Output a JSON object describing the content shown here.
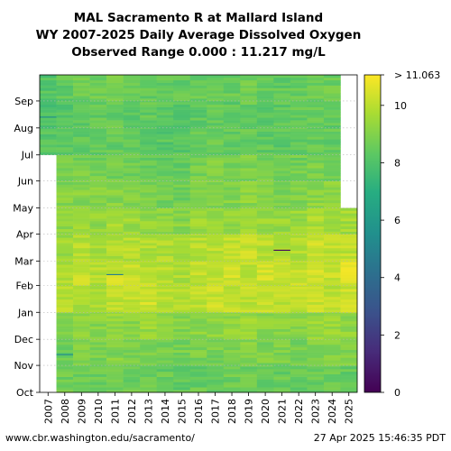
{
  "chart_data": {
    "type": "heatmap",
    "title_lines": [
      "MAL Sacramento R at Mallard Island",
      "WY 2007-2025 Daily Average Dissolved Oxygen",
      "Observed Range 0.000 : 11.217 mg/L"
    ],
    "xlabel": "",
    "ylabel": "",
    "x_categories": [
      "2007",
      "2008",
      "2009",
      "2010",
      "2011",
      "2012",
      "2013",
      "2014",
      "2015",
      "2016",
      "2017",
      "2018",
      "2019",
      "2020",
      "2021",
      "2022",
      "2023",
      "2024",
      "2025"
    ],
    "y_month_ticks": [
      "Oct",
      "Nov",
      "Dec",
      "Jan",
      "Feb",
      "Mar",
      "Apr",
      "May",
      "Jun",
      "Jul",
      "Aug",
      "Sep"
    ],
    "colorbar": {
      "colormap": "viridis",
      "min": 0,
      "max": 11.063,
      "ticks": [
        0,
        2,
        4,
        6,
        8,
        10
      ],
      "top_label": "> 11.063",
      "units": "mg/L"
    },
    "no_data_regions": [
      {
        "water_year": "2007",
        "months": "Oct-Jun"
      },
      {
        "water_year": "2025",
        "months": "May-Sep"
      }
    ],
    "monthly_typical_values_mg_per_L": {
      "months": [
        "Oct",
        "Nov",
        "Dec",
        "Jan",
        "Feb",
        "Mar",
        "Apr",
        "May",
        "Jun",
        "Jul",
        "Aug",
        "Sep"
      ],
      "series": [
        {
          "water_year": "2007",
          "values": [
            null,
            null,
            null,
            null,
            null,
            null,
            null,
            null,
            null,
            8.2,
            8.0,
            8.1
          ]
        },
        {
          "water_year": "2008",
          "values": [
            8.6,
            8.6,
            9.0,
            10.0,
            9.8,
            9.5,
            9.2,
            9.0,
            8.9,
            8.3,
            8.2,
            8.4
          ]
        },
        {
          "water_year": "2009",
          "values": [
            8.5,
            8.9,
            9.2,
            9.8,
            10.1,
            9.9,
            9.4,
            9.1,
            8.8,
            8.3,
            8.4,
            8.6
          ]
        },
        {
          "water_year": "2010",
          "values": [
            8.5,
            8.9,
            9.1,
            9.6,
            9.9,
            9.7,
            9.3,
            9.0,
            8.7,
            8.4,
            8.4,
            8.6
          ]
        },
        {
          "water_year": "2011",
          "values": [
            8.7,
            9.0,
            9.3,
            10.0,
            10.2,
            9.8,
            9.6,
            9.1,
            8.8,
            8.5,
            8.5,
            8.7
          ]
        },
        {
          "water_year": "2012",
          "values": [
            8.6,
            8.9,
            9.2,
            10.1,
            10.3,
            9.9,
            9.5,
            9.0,
            8.7,
            8.4,
            8.3,
            8.5
          ]
        },
        {
          "water_year": "2013",
          "values": [
            8.5,
            8.9,
            9.4,
            10.3,
            10.0,
            9.8,
            9.3,
            8.9,
            8.6,
            8.3,
            8.4,
            8.5
          ]
        },
        {
          "water_year": "2014",
          "values": [
            8.5,
            8.9,
            9.3,
            10.0,
            9.9,
            9.8,
            9.2,
            8.8,
            8.5,
            8.2,
            8.3,
            8.5
          ]
        },
        {
          "water_year": "2015",
          "values": [
            8.4,
            8.8,
            9.0,
            9.8,
            9.8,
            9.6,
            9.1,
            8.7,
            8.4,
            8.2,
            8.2,
            8.4
          ]
        },
        {
          "water_year": "2016",
          "values": [
            8.5,
            8.8,
            9.2,
            10.1,
            10.0,
            9.9,
            9.4,
            9.0,
            8.8,
            8.4,
            8.3,
            8.5
          ]
        },
        {
          "water_year": "2017",
          "values": [
            8.5,
            8.8,
            9.3,
            10.2,
            10.1,
            10.0,
            9.5,
            9.1,
            8.9,
            8.5,
            8.4,
            8.6
          ]
        },
        {
          "water_year": "2018",
          "values": [
            8.6,
            8.9,
            9.3,
            10.0,
            10.3,
            10.0,
            9.4,
            9.0,
            8.7,
            8.4,
            8.3,
            8.5
          ]
        },
        {
          "water_year": "2019",
          "values": [
            8.6,
            9.0,
            9.4,
            10.0,
            10.1,
            10.2,
            9.6,
            9.2,
            8.9,
            8.5,
            8.5,
            8.6
          ]
        },
        {
          "water_year": "2020",
          "values": [
            8.5,
            8.9,
            9.2,
            10.1,
            10.3,
            10.0,
            9.4,
            9.0,
            8.7,
            8.4,
            8.3,
            8.5
          ]
        },
        {
          "water_year": "2021",
          "values": [
            8.5,
            8.9,
            9.2,
            10.0,
            10.2,
            9.9,
            9.4,
            8.9,
            8.6,
            8.3,
            8.3,
            8.4
          ]
        },
        {
          "water_year": "2022",
          "values": [
            8.4,
            8.8,
            9.2,
            10.1,
            10.1,
            9.9,
            9.4,
            9.0,
            8.7,
            8.4,
            8.4,
            8.5
          ]
        },
        {
          "water_year": "2023",
          "values": [
            8.6,
            9.0,
            9.4,
            10.1,
            10.4,
            10.3,
            9.7,
            9.2,
            8.9,
            8.5,
            8.4,
            8.6
          ]
        },
        {
          "water_year": "2024",
          "values": [
            8.6,
            9.0,
            9.4,
            10.0,
            10.2,
            10.0,
            9.5,
            9.1,
            8.8,
            8.5,
            8.4,
            8.6
          ]
        },
        {
          "water_year": "2025",
          "values": [
            8.4,
            8.9,
            9.3,
            10.2,
            10.5,
            10.0,
            9.6,
            null,
            null,
            null,
            null,
            null
          ]
        }
      ]
    },
    "notable_low_streaks_mg_per_L": [
      {
        "water_year": "2007",
        "month": "Aug",
        "value": 5.5
      },
      {
        "water_year": "2008",
        "month": "Nov",
        "value": 5.2
      },
      {
        "water_year": "2011",
        "month": "Feb",
        "value": 4.8
      },
      {
        "water_year": "2021",
        "month": "Mar",
        "value": 0.3
      }
    ]
  },
  "footer": {
    "source": "www.cbr.washington.edu/sacramento/",
    "timestamp": "27 Apr 2025 15:46:35 PDT"
  }
}
